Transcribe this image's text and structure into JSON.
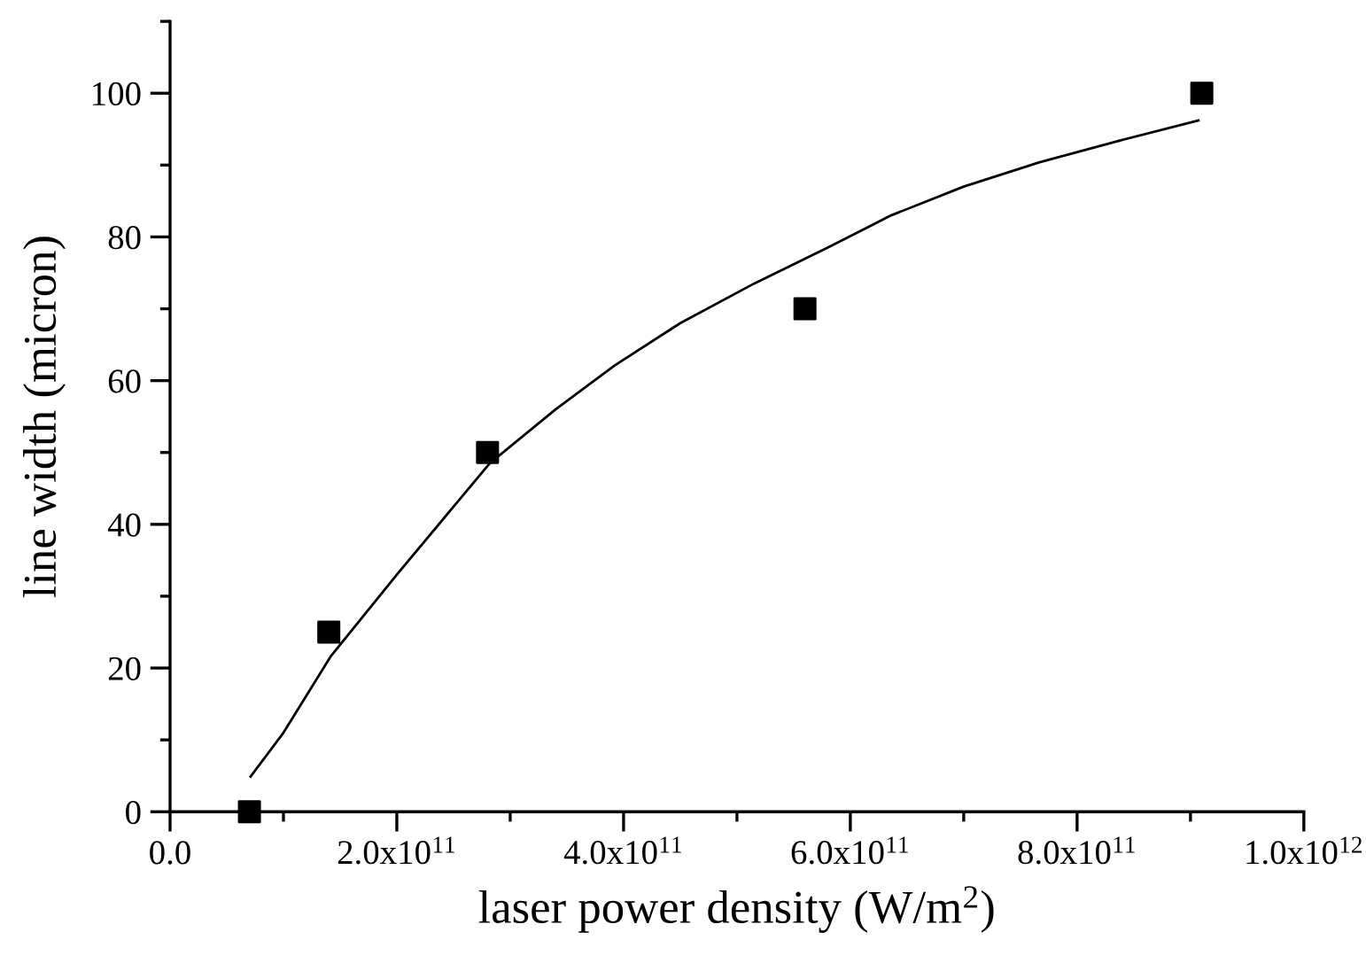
{
  "chart_data": {
    "type": "scatter",
    "xlabel": "laser power density (W/m$^{2}$)",
    "ylabel": "line width (micron)",
    "series": [
      {
        "color": "#000000",
        "marker": "square",
        "x": [
          70000000000.0,
          140000000000.0,
          280000000000.0,
          560000000000.0,
          910000000000.0
        ],
        "values": [
          0,
          25,
          50,
          70,
          100
        ]
      },
      {
        "type": "line",
        "color": "#000000",
        "marker": "none",
        "line_style": "solid",
        "x": [
          71000000000.0,
          100000000000.0,
          142000000000.0,
          200000000000.0,
          282000000000.0,
          340000000000.0,
          392000000000.0,
          450000000000.0,
          515000000000.0,
          580000000000.0,
          636000000000.0,
          700000000000.0,
          767000000000.0,
          840000000000.0,
          907000000000.0
        ],
        "values": [
          4.9,
          11,
          21.7,
          33,
          48.5,
          56,
          62.1,
          68,
          73.5,
          78.5,
          83.0,
          87,
          90.4,
          93.5,
          96.2
        ]
      }
    ],
    "xlim": [
      0,
      1000000000000.0
    ],
    "ylim": [
      0,
      110
    ],
    "xticks": [
      {
        "value": 0,
        "label": "0.0"
      },
      {
        "value": 200000000000.0,
        "label": "2.0x10$^{11}$"
      },
      {
        "value": 400000000000.0,
        "label": "4.0x10$^{11}$"
      },
      {
        "value": 600000000000.0,
        "label": "6.0x10$^{11}$"
      },
      {
        "value": 800000000000.0,
        "label": "8.0x10$^{11}$"
      },
      {
        "value": 1000000000000.0,
        "label": "1.0x10$^{12}$"
      }
    ],
    "yticks": [
      0,
      20,
      40,
      60,
      80,
      100
    ],
    "grid": false,
    "legend": false
  }
}
